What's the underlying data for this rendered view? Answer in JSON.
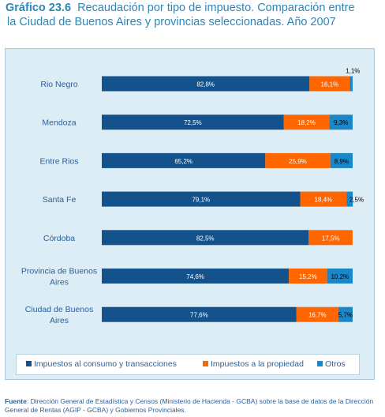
{
  "title": {
    "prefix": "Gráfico 23.6",
    "line1": "Recaudación por tipo de impuesto. Comparación entre",
    "line2": "la Ciudad de Buenos Aires y provincias seleccionadas. Año 2007"
  },
  "colors": {
    "consumo": "#14528c",
    "propiedad": "#ff6600",
    "otros": "#1b86c8",
    "panel": "#dcedf6",
    "text": "#2b5f99"
  },
  "chart_data": {
    "type": "bar",
    "orientation": "horizontal",
    "stacked": true,
    "categories": [
      [
        "Rio Negro"
      ],
      [
        "Mendoza"
      ],
      [
        "Entre Rios"
      ],
      [
        "Santa Fe"
      ],
      [
        "Córdoba"
      ],
      [
        "Provincia de Buenos",
        "Aires"
      ],
      [
        "Ciudad de Buenos",
        "Aires"
      ]
    ],
    "series": [
      {
        "name": "Impuestos al consumo y transacciones",
        "values": [
          82.8,
          72.5,
          65.2,
          79.1,
          82.5,
          74.6,
          77.6
        ],
        "labels": [
          "82,8%",
          "72,5%",
          "65,2%",
          "79,1%",
          "82,5%",
          "74,6%",
          "77,6%"
        ]
      },
      {
        "name": "Impuestos a la propiedad",
        "values": [
          16.1,
          18.2,
          25.9,
          18.4,
          17.5,
          15.2,
          16.7
        ],
        "labels": [
          "16,1%",
          "18,2%",
          "25,9%",
          "18,4%",
          "17,5%",
          "15,2%",
          "16,7%"
        ]
      },
      {
        "name": "Otros",
        "values": [
          1.1,
          9.3,
          8.9,
          2.5,
          0,
          10.2,
          5.7
        ],
        "labels": [
          "1,1%",
          "9,3%",
          "8,9%",
          "2,5%",
          "",
          "10,2%",
          "5,7%"
        ]
      }
    ],
    "xlim": [
      0,
      100
    ],
    "grid": false,
    "legend_position": "bottom"
  },
  "source": {
    "label": "Fuente",
    "text": ": Dirección General de Estadística y Censos (Ministerio de Hacienda - GCBA) sobre la base de datos de la Dirección General de Rentas (AGIP - GCBA) y Gobiernos Provinciales."
  }
}
